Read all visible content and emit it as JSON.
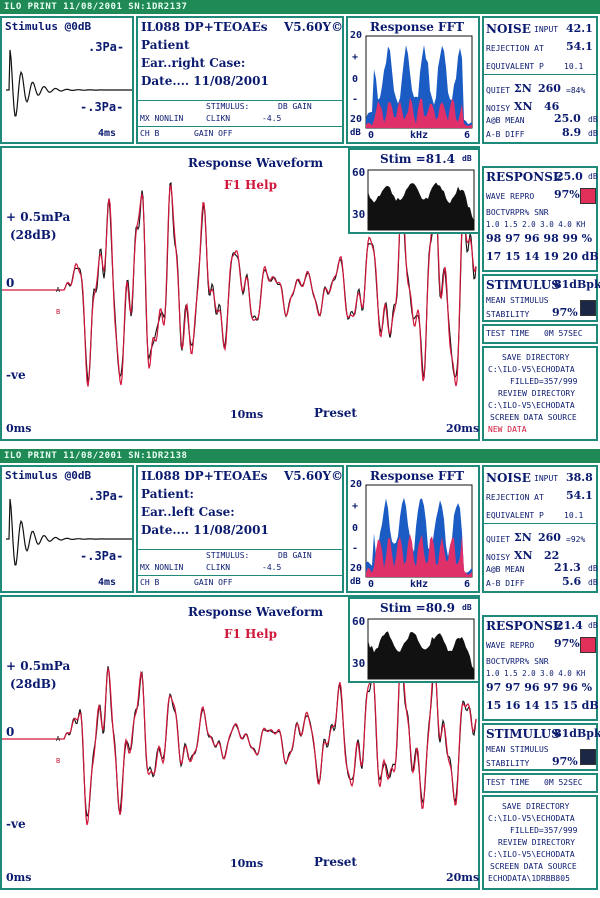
{
  "panels": [
    {
      "bar_text": "ILO PRINT 11/08/2001 SN:1DR2137",
      "stim": {
        "title": "Stimulus @0dB",
        "top": ".3Pa-",
        "bottom": "-.3Pa-",
        "time": "4ms"
      },
      "info": {
        "line1": "IL088 DP+TEOAEs",
        "version": "V5.60Y©",
        "patient": "Patient",
        "ear": "Ear..right Case:",
        "date": "Date.... 11/08/2001",
        "stim_hdr": "STIMULUS:",
        "db_gain": "DB GAIN",
        "mx": "MX NONLIN",
        "clikn": "CLIKN",
        "gain_val": "-4.5",
        "ch": "CH B",
        "gain_off": "GAIN OFF"
      },
      "fft": {
        "title": "Response FFT",
        "y_ticks": [
          "20",
          "+",
          "0",
          "-",
          "20"
        ],
        "x_ticks": [
          "0",
          "kHz",
          "6"
        ],
        "unit": "dB"
      },
      "wave": {
        "title": "Response Waveform",
        "help": "F1 Help",
        "scale": "+ 0.5mPa",
        "scale_db": "(28dB)",
        "zero": "0",
        "neg": "-ve",
        "t0": "0ms",
        "t10": "10ms",
        "t20": "20ms",
        "preset": "Preset",
        "a": "A",
        "b": "B"
      },
      "stimspec": {
        "title": "Stim =81.4",
        "unit": "dB",
        "y60": "60",
        "y30": "30"
      },
      "noise": {
        "label": "NOISE",
        "input": "INPUT",
        "input_val": "42.1",
        "rej": "REJECTION AT",
        "rej_val": "54.1",
        "equiv": "EQUIVALENT P",
        "equiv_val": "10.1",
        "quiet": "QUIET",
        "quiet_sym": "ΣN",
        "quiet_val": "260",
        "quiet_pct": "=84%",
        "noisy": "NOISY",
        "noisy_sym": "XN",
        "noisy_val": "46",
        "ab_mean": "A@B MEAN",
        "ab_mean_val": "25.0",
        "ab_diff": "A-B DIFF",
        "ab_diff_val": "8.9",
        "unit": "dB"
      },
      "response": {
        "label": "RESPONSE",
        "val": "25.0",
        "unit": "dB",
        "wave_repro": "WAVE REPRO",
        "repro_val": "97%",
        "repro_color": "#e0305a",
        "octv": "BOCTVRPR% SNR",
        "bands": "1.0 1.5 2.0 3.0 4.0 KH",
        "repro_row": "98 97 96 98 99 %",
        "snr_row": "17 15 14 19 20 dB"
      },
      "stimulus": {
        "label": "STIMULUS",
        "val": "81dBpk",
        "mean": "MEAN STIMULUS",
        "stab": "STABILITY",
        "stab_val": "97%",
        "color": "#1b2745"
      },
      "test_time": {
        "label": "TEST TIME",
        "val": "0M 57SEC"
      },
      "dir": {
        "save": "SAVE DIRECTORY",
        "save_path": "C:\\ILO-V5\\ECHODATA",
        "filled": "FILLED=357/999",
        "review": "REVIEW DIRECTORY",
        "review_path": "C:\\ILO-V5\\ECHODATA",
        "source": "SCREEN DATA SOURCE",
        "source_val": "NEW DATA",
        "source_color": "#d0163a"
      }
    },
    {
      "bar_text": "ILO PRINT 11/08/2001 SN:1DR2138",
      "stim": {
        "title": "Stimulus @0dB",
        "top": ".3Pa-",
        "bottom": "-.3Pa-",
        "time": "4ms"
      },
      "info": {
        "line1": "IL088 DP+TEOAEs",
        "version": "V5.60Y©",
        "patient": "Patient:",
        "ear": "Ear..left Case:",
        "date": "Date.... 11/08/2001",
        "stim_hdr": "STIMULUS:",
        "db_gain": "DB GAIN",
        "mx": "MX NONLIN",
        "clikn": "CLIKN",
        "gain_val": "-4.5",
        "ch": "CH B",
        "gain_off": "GAIN OFF"
      },
      "fft": {
        "title": "Response FFT",
        "y_ticks": [
          "20",
          "+",
          "0",
          "-",
          "20"
        ],
        "x_ticks": [
          "0",
          "kHz",
          "6"
        ],
        "unit": "dB"
      },
      "wave": {
        "title": "Response Waveform",
        "help": "F1 Help",
        "scale": "+ 0.5mPa",
        "scale_db": "(28dB)",
        "zero": "0",
        "neg": "-ve",
        "t0": "0ms",
        "t10": "10ms",
        "t20": "20ms",
        "preset": "Preset",
        "a": "A",
        "b": "B"
      },
      "stimspec": {
        "title": "Stim =80.9",
        "unit": "dB",
        "y60": "60",
        "y30": "30"
      },
      "noise": {
        "label": "NOISE",
        "input": "INPUT",
        "input_val": "38.8",
        "rej": "REJECTION AT",
        "rej_val": "54.1",
        "equiv": "EQUIVALENT P",
        "equiv_val": "10.1",
        "quiet": "QUIET",
        "quiet_sym": "ΣN",
        "quiet_val": "260",
        "quiet_pct": "=92%",
        "noisy": "NOISY",
        "noisy_sym": "XN",
        "noisy_val": "22",
        "ab_mean": "A@B MEAN",
        "ab_mean_val": "21.3",
        "ab_diff": "A-B DIFF",
        "ab_diff_val": "5.6",
        "unit": "dB"
      },
      "response": {
        "label": "RESPONSE",
        "val": "21.4",
        "unit": "dB",
        "wave_repro": "WAVE REPRO",
        "repro_val": "97%",
        "repro_color": "#e0305a",
        "octv": "BOCTVRPR% SNR",
        "bands": "1.0 1.5 2.0 3.0 4.0 KH",
        "repro_row": "97 97 96 97 96 %",
        "snr_row": "15 16 14 15 15 dB"
      },
      "stimulus": {
        "label": "STIMULUS",
        "val": "81dBpk",
        "mean": "MEAN STIMULUS",
        "stab": "STABILITY",
        "stab_val": "97%",
        "color": "#1b2745"
      },
      "test_time": {
        "label": "TEST TIME",
        "val": "0M 52SEC"
      },
      "dir": {
        "save": "SAVE DIRECTORY",
        "save_path": "C:\\ILO-V5\\ECHODATA",
        "filled": "FILLED=357/999",
        "review": "REVIEW DIRECTORY",
        "review_path": "C:\\ILO-V5\\ECHODATA",
        "source": "SCREEN DATA SOURCE",
        "source_val": "ECHODATA\\1DRBB805",
        "source_color": "#0a1a6e"
      }
    }
  ],
  "colors": {
    "frame": "#1f8a7a",
    "bar": "#1f8a55",
    "text": "#0a1a6e",
    "trace_a": "#d0163a",
    "trace_b": "#111111",
    "fft_response": "#1a5bc4",
    "fft_noise": "#e0306a",
    "spectrum": "#111111"
  }
}
